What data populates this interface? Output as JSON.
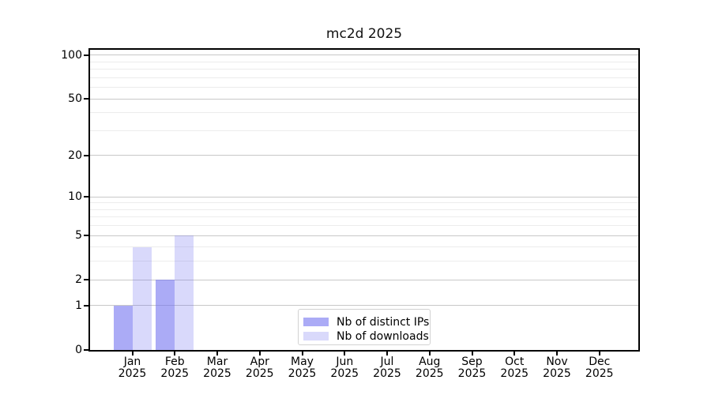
{
  "title": "mc2d 2025",
  "chart_data": {
    "type": "bar",
    "title": "mc2d 2025",
    "categories": [
      "Jan",
      "Feb",
      "Mar",
      "Apr",
      "May",
      "Jun",
      "Jul",
      "Aug",
      "Sep",
      "Oct",
      "Nov",
      "Dec"
    ],
    "category_year": "2025",
    "series": [
      {
        "name": "Nb of distinct IPs",
        "color": "rgba(110,110,240,0.58)",
        "values": [
          1,
          2,
          0,
          0,
          0,
          0,
          0,
          0,
          0,
          0,
          0,
          0
        ]
      },
      {
        "name": "Nb of downloads",
        "color": "rgba(110,110,240,0.26)",
        "values": [
          4,
          5,
          0,
          0,
          0,
          0,
          0,
          0,
          0,
          0,
          0,
          0
        ]
      }
    ],
    "y_axis": {
      "scale": "symlog-log1p",
      "range": [
        0,
        109
      ],
      "ticks": [
        0,
        1,
        2,
        5,
        10,
        20,
        50,
        100
      ],
      "minor_gridlines": [
        3,
        4,
        6,
        7,
        8,
        9,
        30,
        40,
        60,
        70,
        80,
        90
      ]
    },
    "x_axis": {
      "tick_line1": [
        "Jan",
        "Feb",
        "Mar",
        "Apr",
        "May",
        "Jun",
        "Jul",
        "Aug",
        "Sep",
        "Oct",
        "Nov",
        "Dec"
      ],
      "tick_line2": "2025"
    },
    "legend": {
      "position": "lower center",
      "entries": [
        "Nb of distinct IPs",
        "Nb of downloads"
      ]
    },
    "grid": "horizontal major and minor",
    "colors": {
      "distinct_ips_bar": "#a8a8f0",
      "downloads_bar": "#d8d8fa",
      "major_grid": "#c8c8c8",
      "minor_grid": "#ececec",
      "spine": "#000000"
    }
  }
}
